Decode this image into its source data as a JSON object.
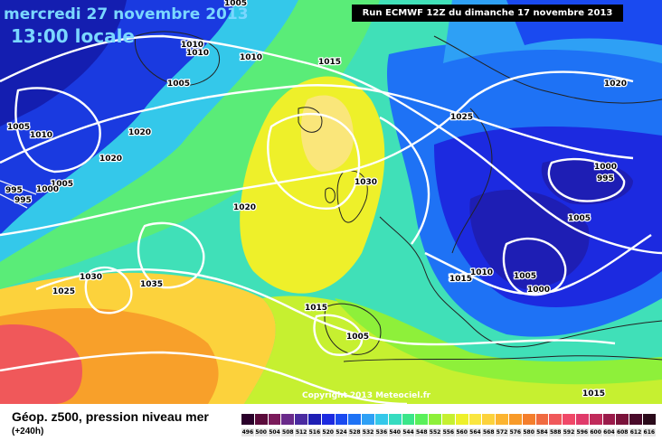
{
  "header": {
    "date": "mercredi 27 novembre 2013",
    "time": "13:00 locale",
    "run": "Run ECMWF 12Z du dimanche 17 novembre 2013"
  },
  "copyright": "Copyright 2013 Meteociel.fr",
  "footer": {
    "title": "Géop. z500, pression niveau mer",
    "subtitle": "(+240h)"
  },
  "isobar_labels": [
    "1015",
    "1005",
    "1010",
    "1010",
    "1010",
    "1005",
    "1005",
    "1010",
    "1020",
    "1005",
    "1000",
    "995",
    "995",
    "1020",
    "1015",
    "1030",
    "1020",
    "1025",
    "1035",
    "1030",
    "1015",
    "1025",
    "1005",
    "1015",
    "1010",
    "1005",
    "1000",
    "1005",
    "1000",
    "995",
    "1020",
    "1015"
  ],
  "colorbar": {
    "labels": [
      "496",
      "500",
      "504",
      "508",
      "512",
      "516",
      "520",
      "524",
      "528",
      "532",
      "536",
      "540",
      "544",
      "548",
      "552",
      "556",
      "560",
      "564",
      "568",
      "572",
      "576",
      "580",
      "584",
      "588",
      "592",
      "596",
      "600",
      "604",
      "608",
      "612",
      "616"
    ],
    "colors": [
      "#2a002a",
      "#5a0a3a",
      "#7a1a5a",
      "#6a2a8a",
      "#4a2aa0",
      "#1e1eb4",
      "#1c2ae0",
      "#1a4af0",
      "#1e72f5",
      "#2ea0f5",
      "#34c8ea",
      "#36dcc0",
      "#3ae68a",
      "#5af05a",
      "#8ef03a",
      "#c6f030",
      "#eef02a",
      "#fae640",
      "#fcd23c",
      "#fcb430",
      "#f89a28",
      "#f47e2c",
      "#f06a40",
      "#f0585a",
      "#f04868",
      "#e03a6a",
      "#c02a5a",
      "#9a1a4a",
      "#7a123a",
      "#4a0a2a",
      "#2a0a1a"
    ]
  }
}
